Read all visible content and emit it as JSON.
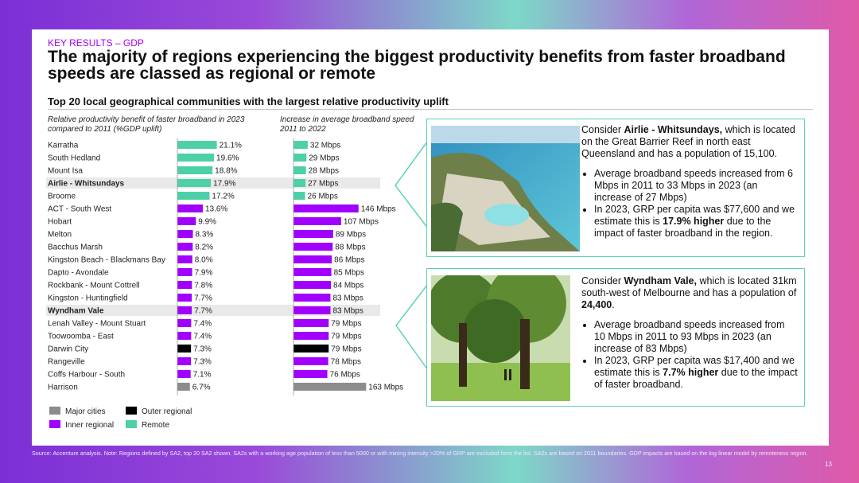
{
  "kicker": "KEY RESULTS – GDP",
  "title": "The majority of regions experiencing the biggest productivity benefits from faster broadband speeds are classed as regional or remote",
  "subtitle": "Top 20 local geographical communities with the largest relative productivity uplift",
  "col_left_header": "Relative productivity benefit of faster broadband in 2023 compared to 2011 (%GDP uplift)",
  "col_right_header": "Increase in average broadband speed 2011 to 2022",
  "colors": {
    "remote": "#4dd0a8",
    "inner": "#a100ff",
    "outer": "#000000",
    "major": "#8c8c8c",
    "highlight": "#e9e9e9",
    "accent": "#a100ff"
  },
  "chart_data": {
    "type": "bar",
    "categories": [
      "Karratha",
      "South Hedland",
      "Mount Isa",
      "Airlie - Whitsundays",
      "Broome",
      "ACT - South West",
      "Hobart",
      "Melton",
      "Bacchus Marsh",
      "Kingston Beach - Blackmans Bay",
      "Dapto - Avondale",
      "Rockbank - Mount Cottrell",
      "Kingston - Huntingfield",
      "Wyndham Vale",
      "Lenah Valley - Mount Stuart",
      "Toowoomba - East",
      "Darwin City",
      "Rangeville",
      "Coffs Harbour - South",
      "Harrison"
    ],
    "highlighted": [
      "Airlie - Whitsundays",
      "Wyndham Vale"
    ],
    "series": [
      {
        "name": "%GDP uplift",
        "values": [
          21.1,
          19.6,
          18.8,
          17.9,
          17.2,
          13.6,
          9.9,
          8.3,
          8.2,
          8.0,
          7.9,
          7.8,
          7.7,
          7.7,
          7.4,
          7.4,
          7.3,
          7.3,
          7.1,
          6.7
        ],
        "labels": [
          "21.1%",
          "19.6%",
          "18.8%",
          "17.9%",
          "17.2%",
          "13.6%",
          "9.9%",
          "8.3%",
          "8.2%",
          "8.0%",
          "7.9%",
          "7.8%",
          "7.7%",
          "7.7%",
          "7.4%",
          "7.4%",
          "7.3%",
          "7.3%",
          "7.1%",
          "6.7%"
        ]
      },
      {
        "name": "Mbps increase",
        "values": [
          32,
          29,
          28,
          27,
          26,
          146,
          107,
          89,
          88,
          86,
          85,
          84,
          83,
          83,
          79,
          79,
          79,
          78,
          76,
          163
        ],
        "labels": [
          "32 Mbps",
          "29 Mbps",
          "28 Mbps",
          "27 Mbps",
          "26 Mbps",
          "146 Mbps",
          "107 Mbps",
          "89 Mbps",
          "88 Mbps",
          "86 Mbps",
          "85 Mbps",
          "84 Mbps",
          "83 Mbps",
          "83 Mbps",
          "79 Mbps",
          "79 Mbps",
          "79 Mbps",
          "78 Mbps",
          "76 Mbps",
          "163 Mbps"
        ]
      }
    ],
    "classes": [
      "remote",
      "remote",
      "remote",
      "remote",
      "remote",
      "inner",
      "inner",
      "inner",
      "inner",
      "inner",
      "inner",
      "inner",
      "inner",
      "inner",
      "inner",
      "inner",
      "outer",
      "inner",
      "inner",
      "major"
    ]
  },
  "legend": {
    "major": "Major cities",
    "outer": "Outer regional",
    "inner": "Inner regional",
    "remote": "Remote"
  },
  "callout1": {
    "intro_pre": "Consider ",
    "intro_bold": "Airlie - Whitsundays,",
    "intro_post": " which is located on the Great Barrier Reef in north east Queensland and has a population of 15,100.",
    "b1": "Average broadband speeds increased from 6 Mbps in 2011 to 33 Mbps in 2023 (an increase of 27 Mbps)",
    "b2_pre": "In 2023, GRP per capita was $77,600 and we estimate this is ",
    "b2_bold": "17.9% higher",
    "b2_post": " due to the impact of faster broadband in the region."
  },
  "callout2": {
    "intro_pre": "Consider ",
    "intro_bold": "Wyndham Vale,",
    "intro_post": " which is located 31km south-west of Melbourne and has a population of ",
    "intro_bold2": "24,400",
    "intro_end": ".",
    "b1": "Average broadband speeds increased from 10 Mbps in 2011 to 93 Mbps in 2023 (an increase of 83 Mbps)",
    "b2_pre": "In 2023, GRP per capita was $17,400 and we estimate this is ",
    "b2_bold": "7.7% higher",
    "b2_post": " due to the impact of faster broadband."
  },
  "footnote": "Source: Accenture analysis. Note: Regions defined by SA2, top 20 SA2 shown. SA2s with a working age population of less than 5000 or with mining intensity >20% of GRP are excluded form the list. SA2s are based on 2011 boundaries. GDP impacts are based on the log-linear model by remoteness region.",
  "page_number": "13"
}
